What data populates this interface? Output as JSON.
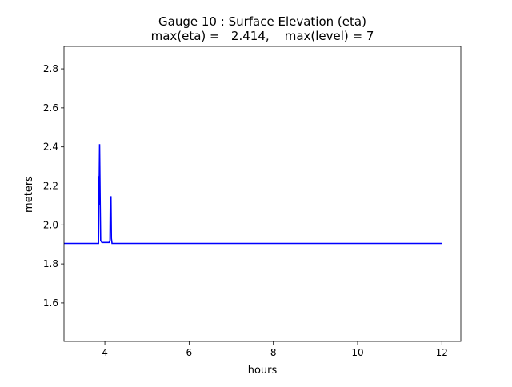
{
  "chart_data": {
    "type": "line",
    "title": "Gauge 10 : Surface Elevation (eta)",
    "subtitle": "max(eta) =   2.414,    max(level) = 7",
    "xlabel": "hours",
    "ylabel": "meters",
    "xlim": [
      3.03,
      12.45
    ],
    "ylim": [
      1.403,
      2.915
    ],
    "xticks": [
      4,
      6,
      8,
      10,
      12
    ],
    "yticks": [
      1.6,
      1.8,
      2.0,
      2.2,
      2.4,
      2.6,
      2.8
    ],
    "xtick_labels": [
      "4",
      "6",
      "8",
      "10",
      "12"
    ],
    "ytick_labels": [
      "1.6",
      "1.8",
      "2.0",
      "2.2",
      "2.4",
      "2.6",
      "2.8"
    ],
    "grid": false,
    "series": [
      {
        "name": "eta",
        "color": "#0000ff",
        "x": [
          3.0,
          3.85,
          3.855,
          3.86,
          3.875,
          3.89,
          3.9,
          3.93,
          4.1,
          4.12,
          4.13,
          4.145,
          4.155,
          4.17,
          12.0
        ],
        "y": [
          1.905,
          1.905,
          2.25,
          2.1,
          2.414,
          2.1,
          1.92,
          1.91,
          1.91,
          1.92,
          2.144,
          2.144,
          1.93,
          1.905,
          1.905
        ]
      }
    ]
  }
}
